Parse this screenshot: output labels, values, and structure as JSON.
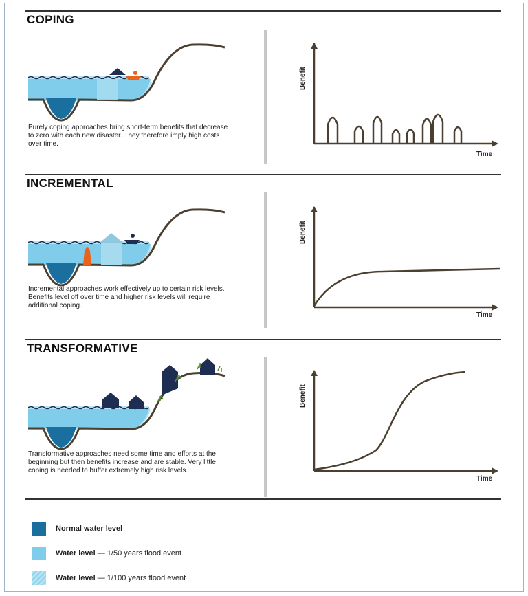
{
  "sections": [
    {
      "title": "COPING",
      "description": "Purely coping approaches bring short-term benefits that decrease to zero with each new disaster. They therefore imply high costs over time.",
      "ylabel": "Benefit",
      "xlabel": "Time"
    },
    {
      "title": "INCREMENTAL",
      "description": "Incremental approaches work effectively up to certain risk levels. Benefits level off over time and higher risk levels will require additional coping.",
      "ylabel": "Benefit",
      "xlabel": "Time"
    },
    {
      "title": "TRANSFORMATIVE",
      "description": "Transformative approaches need some time and efforts at the beginning but then benefits increase and are stable. Very little coping is needed to buffer extremely high risk levels.",
      "ylabel": "Benefit",
      "xlabel": "Time"
    }
  ],
  "legend": [
    {
      "label": "Normal water level",
      "detail": "",
      "color": "#1a6f9f"
    },
    {
      "label": "Water level",
      "detail": " — 1/50 years flood event",
      "color": "#7fcdea"
    },
    {
      "label": "Water level",
      "detail": " — 1/100 years flood event",
      "color": "#b7e3f4"
    }
  ],
  "colors": {
    "curve": "#4a3f30",
    "house": "#1e2d52",
    "boat": "#e8641c",
    "levee": "#e8641c",
    "grass": "#5a8a3a"
  }
}
